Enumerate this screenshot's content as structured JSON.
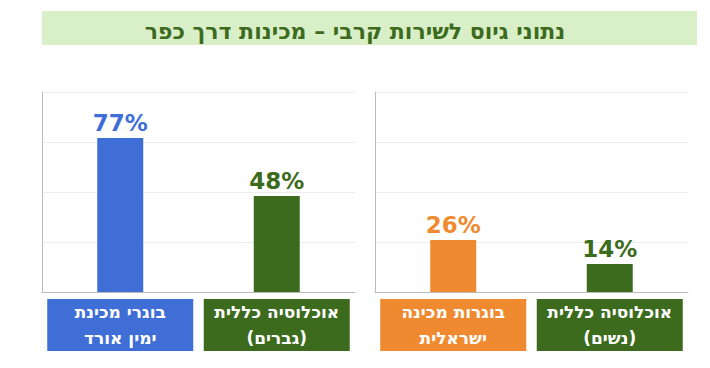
{
  "title": "נתוני גיוס לשירות קרבי – מכינות דרך כפר",
  "chart_data": [
    {
      "type": "bar",
      "categories": [
        "בוגרי מכינת\nימין אורד",
        "אוכלוסיה כללית\n(גברים)"
      ],
      "values": [
        77,
        48
      ],
      "value_labels": [
        "77%",
        "48%"
      ],
      "colors": [
        "#3f6fd6",
        "#3d6b1e"
      ],
      "ylim": [
        0,
        100
      ],
      "yticks": [
        0,
        25,
        50,
        75,
        100
      ],
      "grid": true,
      "data_labels": true,
      "tick_labels": "x"
    },
    {
      "type": "bar",
      "categories": [
        "בוגרות מכינה\nישראלית",
        "אוכלוסיה כללית\n(נשים)"
      ],
      "values": [
        26,
        14
      ],
      "value_labels": [
        "26%",
        "14%"
      ],
      "colors": [
        "#f08a30",
        "#3d6b1e"
      ],
      "ylim": [
        0,
        100
      ],
      "yticks": [
        0,
        25,
        50,
        75,
        100
      ],
      "grid": true,
      "data_labels": true,
      "tick_labels": "x"
    }
  ]
}
